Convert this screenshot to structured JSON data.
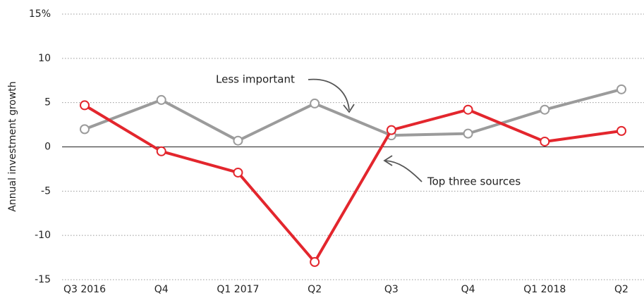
{
  "chart_data": {
    "type": "line",
    "y_label": "Annual investment growth",
    "categories": [
      "Q3 2016",
      "Q4",
      "Q1 2017",
      "Q2",
      "Q3",
      "Q4",
      "Q1 2018",
      "Q2"
    ],
    "series": [
      {
        "name": "Less important",
        "color": "#9b9b9b",
        "values": [
          2.0,
          5.3,
          0.7,
          4.9,
          1.3,
          1.5,
          4.2,
          6.5
        ]
      },
      {
        "name": "Top three sources",
        "color": "#e3262d",
        "values": [
          4.7,
          -0.5,
          -2.9,
          -13.0,
          1.9,
          4.2,
          0.6,
          1.8
        ]
      }
    ],
    "ylim": [
      -15,
      15
    ],
    "yticks": [
      {
        "value": 15,
        "label": "15%"
      },
      10,
      5,
      0,
      -5,
      -10,
      -15
    ],
    "grid": true
  }
}
